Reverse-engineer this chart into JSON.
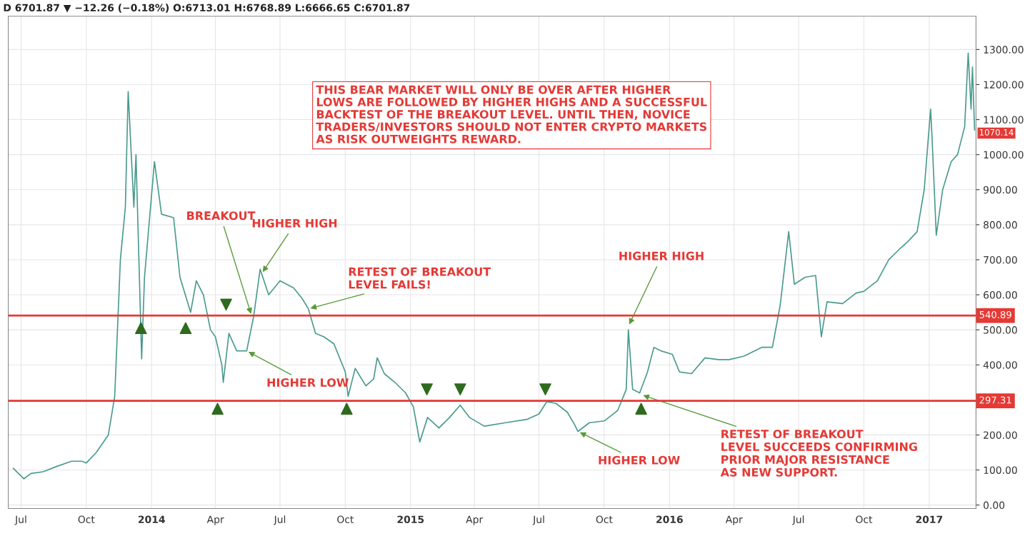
{
  "chart_data": {
    "type": "line",
    "title": "D 6701.87 ▼ −12.26 (−0.18%) O:6713.01 H:6768.89 L:6666.65 C:6701.87",
    "series": [
      {
        "color": "#4a9a8f",
        "x": [
          "2013-06-20",
          "2013-07-05",
          "2013-07-15",
          "2013-08-01",
          "2013-08-20",
          "2013-09-10",
          "2013-09-25",
          "2013-10-01",
          "2013-10-15",
          "2013-11-01",
          "2013-11-10",
          "2013-11-18",
          "2013-11-25",
          "2013-11-29",
          "2013-12-07",
          "2013-12-10",
          "2013-12-18",
          "2013-12-22",
          "2014-01-05",
          "2014-01-15",
          "2014-02-01",
          "2014-02-10",
          "2014-02-25",
          "2014-03-05",
          "2014-03-15",
          "2014-03-25",
          "2014-04-01",
          "2014-04-10",
          "2014-04-12",
          "2014-04-20",
          "2014-05-01",
          "2014-05-15",
          "2014-05-25",
          "2014-06-03",
          "2014-06-15",
          "2014-07-01",
          "2014-07-20",
          "2014-08-01",
          "2014-08-10",
          "2014-08-20",
          "2014-09-01",
          "2014-09-15",
          "2014-10-01",
          "2014-10-05",
          "2014-10-15",
          "2014-10-30",
          "2014-11-10",
          "2014-11-15",
          "2014-11-25",
          "2014-12-10",
          "2014-12-25",
          "2015-01-05",
          "2015-01-14",
          "2015-01-25",
          "2015-02-10",
          "2015-02-25",
          "2015-03-12",
          "2015-03-25",
          "2015-04-15",
          "2015-05-15",
          "2015-06-15",
          "2015-07-01",
          "2015-07-12",
          "2015-07-25",
          "2015-08-10",
          "2015-08-20",
          "2015-08-25",
          "2015-09-10",
          "2015-10-01",
          "2015-10-20",
          "2015-11-01",
          "2015-11-04",
          "2015-11-10",
          "2015-11-20",
          "2015-12-01",
          "2015-12-10",
          "2015-12-20",
          "2016-01-05",
          "2016-01-15",
          "2016-02-01",
          "2016-02-20",
          "2016-03-10",
          "2016-03-25",
          "2016-04-15",
          "2016-05-10",
          "2016-05-25",
          "2016-06-05",
          "2016-06-17",
          "2016-06-25",
          "2016-07-10",
          "2016-07-25",
          "2016-08-02",
          "2016-08-10",
          "2016-09-01",
          "2016-09-20",
          "2016-10-01",
          "2016-10-20",
          "2016-11-05",
          "2016-11-20",
          "2016-12-01",
          "2016-12-15",
          "2016-12-25",
          "2017-01-03",
          "2017-01-05",
          "2017-01-11",
          "2017-01-20",
          "2017-02-01",
          "2017-02-10",
          "2017-02-20",
          "2017-02-25",
          "2017-03-01",
          "2017-03-03",
          "2017-03-06"
        ],
        "values": [
          105,
          75,
          90,
          95,
          110,
          125,
          125,
          120,
          150,
          200,
          310,
          700,
          850,
          1180,
          850,
          1000,
          417,
          650,
          980,
          830,
          820,
          650,
          550,
          640,
          600,
          500,
          480,
          400,
          350,
          490,
          440,
          440,
          540,
          673,
          600,
          640,
          620,
          590,
          560,
          490,
          480,
          460,
          380,
          310,
          390,
          340,
          360,
          420,
          375,
          350,
          320,
          280,
          180,
          250,
          220,
          250,
          285,
          250,
          225,
          235,
          245,
          260,
          295,
          290,
          265,
          230,
          210,
          235,
          240,
          270,
          330,
          500,
          330,
          320,
          380,
          450,
          440,
          430,
          380,
          375,
          420,
          415,
          415,
          425,
          450,
          450,
          570,
          780,
          630,
          650,
          655,
          480,
          580,
          575,
          605,
          610,
          640,
          700,
          730,
          750,
          780,
          900,
          1130,
          1050,
          770,
          900,
          980,
          1000,
          1080,
          1290,
          1130,
          1250,
          1070
        ]
      },
      {
        "type": "scatter",
        "color": "#2e6b1e",
        "marker": "triangle",
        "x": [
          "2013-12-17",
          "2014-02-18",
          "2014-04-04",
          "2014-10-03",
          "2015-11-22"
        ],
        "values": [
          505,
          505,
          275,
          275,
          275
        ]
      },
      {
        "type": "scatter",
        "color": "#2e6b1e",
        "marker": "triangle_down",
        "x": [
          "2014-04-16",
          "2015-01-24",
          "2015-03-12",
          "2015-07-10"
        ],
        "values": [
          572,
          330,
          330,
          330
        ]
      }
    ],
    "xlim": [
      "2013-06-13",
      "2017-03-08"
    ],
    "xticks": [
      {
        "value": "2013-07-01",
        "label": "Jul"
      },
      {
        "value": "2013-10-01",
        "label": "Oct"
      },
      {
        "value": "2014-01-01",
        "label": "2014"
      },
      {
        "value": "2014-04-01",
        "label": "Apr"
      },
      {
        "value": "2014-07-01",
        "label": "Jul"
      },
      {
        "value": "2014-10-01",
        "label": "Oct"
      },
      {
        "value": "2015-01-01",
        "label": "2015"
      },
      {
        "value": "2015-04-01",
        "label": "Apr"
      },
      {
        "value": "2015-07-01",
        "label": "Jul"
      },
      {
        "value": "2015-10-01",
        "label": "Oct"
      },
      {
        "value": "2016-01-01",
        "label": "2016"
      },
      {
        "value": "2016-04-01",
        "label": "Apr"
      },
      {
        "value": "2016-07-01",
        "label": "Jul"
      },
      {
        "value": "2016-10-01",
        "label": "Oct"
      },
      {
        "value": "2017-01-01",
        "label": "2017"
      }
    ],
    "ylim": [
      -10,
      1395
    ],
    "yticks": [
      {
        "value": 0,
        "label": "0.00"
      },
      {
        "value": 100,
        "label": "100.00"
      },
      {
        "value": 200,
        "label": "200.00"
      },
      {
        "value": 300,
        "label": null
      },
      {
        "value": 400,
        "label": "400.00"
      },
      {
        "value": 500,
        "label": "500.00"
      },
      {
        "value": 600,
        "label": "600.00"
      },
      {
        "value": 700,
        "label": "700.00"
      },
      {
        "value": 800,
        "label": "800.00"
      },
      {
        "value": 900,
        "label": "900.00"
      },
      {
        "value": 1000,
        "label": "1000.00"
      },
      {
        "value": 1100,
        "label": "1100.00"
      },
      {
        "value": 1200,
        "label": "1200.00"
      },
      {
        "value": 1300,
        "label": "1300.00"
      }
    ],
    "ref_lines": [
      {
        "axis": "y",
        "value": 540.89,
        "label": "540.89",
        "color": "#e53935"
      },
      {
        "axis": "y",
        "value": 297.31,
        "label": "297.31",
        "color": "#e53935"
      }
    ],
    "annotations": [
      "THIS BEAR MARKET WILL ONLY BE OVER AFTER HIGHER\nLOWS ARE FOLLOWED BY HIGHER HIGHS AND A SUCCESSFUL\nBACKTEST OF THE BREAKOUT LEVEL. UNTIL THEN, NOVICE\nTRADERS/INVESTORS SHOULD NOT ENTER CRYPTO MARKETS\nAS RISK OUTWEIGHTS REWARD.",
      {
        "text": "BREAKOUT",
        "x": "2014-05-22",
        "y": 540
      },
      {
        "text": "HIGHER HIGH",
        "x": "2014-06-05",
        "y": 660
      },
      {
        "text": "RETEST OF BREAKOUT\nLEVEL FAILS!",
        "x": "2014-08-10",
        "y": 560
      },
      {
        "text": "HIGHER LOW",
        "x": "2014-05-15",
        "y": 440
      },
      {
        "text": "HIGHER HIGH",
        "x": "2015-11-04",
        "y": 510
      },
      {
        "text": "HIGHER LOW",
        "x": "2015-08-25",
        "y": 210
      },
      {
        "text": "RETEST OF BREAKOUT\nLEVEL SUCCEEDS CONFIRMING\nPRIOR MAJOR RESISTANCE\nAS NEW SUPPORT.",
        "x": "2015-11-22",
        "y": 315
      },
      {
        "text": "1070.14",
        "x": "2017-03-06",
        "y": 1070
      }
    ],
    "grid": true,
    "legend": false
  }
}
